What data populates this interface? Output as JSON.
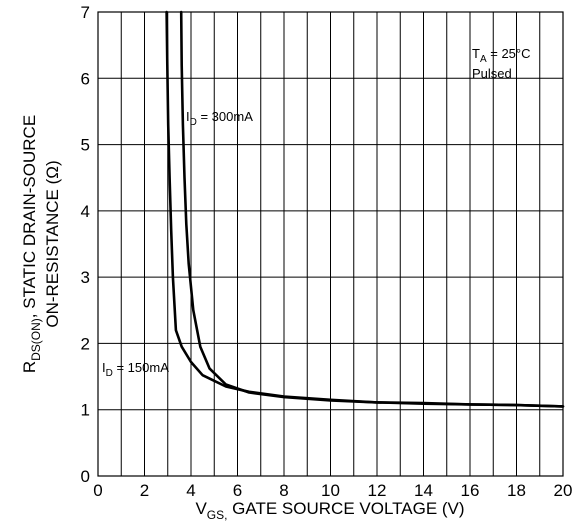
{
  "chart_data": {
    "type": "line",
    "title": "",
    "xlabel": {
      "main": "V",
      "sub": "GS,",
      "rest": " GATE SOURCE VOLTAGE (V)"
    },
    "ylabel": {
      "line1_main": "R",
      "line1_sub": "DS(ON)",
      "line1_rest": ", STATIC DRAIN-SOURCE",
      "line2": "ON-RESISTANCE (Ω)"
    },
    "xlim": [
      0,
      20
    ],
    "ylim": [
      0,
      7
    ],
    "xticks": [
      0,
      2,
      4,
      6,
      8,
      10,
      12,
      14,
      16,
      18,
      20
    ],
    "yticks": [
      0,
      1,
      2,
      3,
      4,
      5,
      6,
      7
    ],
    "grid": true,
    "annotations": {
      "conditions_line1_main": "T",
      "conditions_line1_sub": "A",
      "conditions_line1_rest": " = 25°C",
      "conditions_line2": "Pulsed"
    },
    "series": [
      {
        "name": {
          "main": "I",
          "sub": "D",
          "rest": " = 300mA"
        },
        "x": [
          3.58,
          3.6,
          3.65,
          3.72,
          3.8,
          3.9,
          4.1,
          4.4,
          4.8,
          5.5,
          6.5,
          8,
          10,
          12,
          14,
          16,
          18,
          20
        ],
        "y": [
          7.0,
          6.2,
          5.3,
          4.5,
          3.8,
          3.2,
          2.5,
          1.95,
          1.62,
          1.38,
          1.26,
          1.19,
          1.14,
          1.11,
          1.09,
          1.08,
          1.07,
          1.05
        ]
      },
      {
        "name": {
          "main": "I",
          "sub": "D",
          "rest": " = 150mA"
        },
        "x": [
          2.95,
          2.98,
          3.02,
          3.08,
          3.15,
          3.22,
          3.35,
          3.6,
          4.0,
          4.5,
          5.5,
          6.5,
          8,
          10,
          12,
          14,
          16,
          18,
          20
        ],
        "y": [
          7.0,
          6.2,
          5.3,
          4.5,
          3.7,
          3.0,
          2.2,
          1.95,
          1.72,
          1.52,
          1.35,
          1.27,
          1.2,
          1.15,
          1.11,
          1.1,
          1.08,
          1.07,
          1.05
        ]
      }
    ]
  }
}
